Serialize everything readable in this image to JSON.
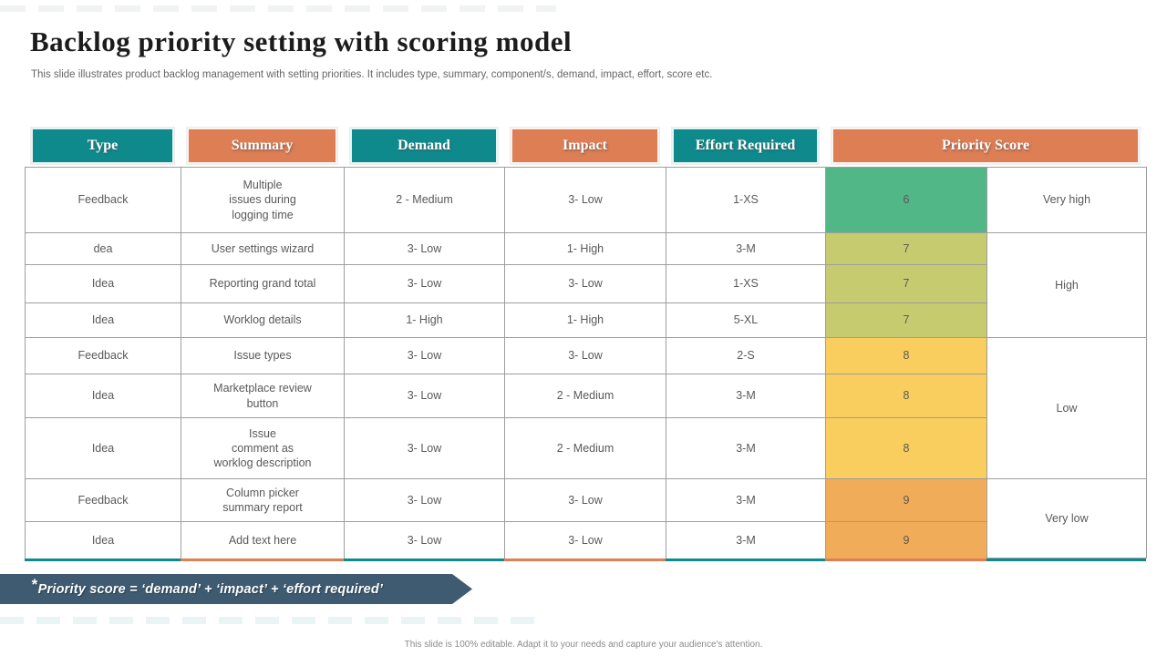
{
  "slide": {
    "title": "Backlog priority setting with scoring model",
    "subtitle": "This slide illustrates product backlog management with setting priorities. It includes type, summary, component/s, demand, impact, effort, score etc.",
    "footer_note": "This slide is 100% editable. Adapt it to your needs and capture your audience's attention.",
    "formula_star": "*",
    "formula_text": "Priority score = ‘demand’ + ‘impact’ + ‘effort required’"
  },
  "table": {
    "headers": [
      {
        "label": "Type",
        "color": "#0E8A8D",
        "span": 1
      },
      {
        "label": "Summary",
        "color": "#DD7E55",
        "span": 1
      },
      {
        "label": "Demand",
        "color": "#0E8A8D",
        "span": 1
      },
      {
        "label": "Impact",
        "color": "#DD7E55",
        "span": 1
      },
      {
        "label": "Effort Required",
        "color": "#0E8A8D",
        "span": 1
      },
      {
        "label": "Priority Score",
        "color": "#DD7E55",
        "span": 2
      }
    ],
    "rows": [
      {
        "type": "Feedback",
        "summary": "Multiple\nissues during\nlogging time",
        "demand": "2 - Medium",
        "impact": "3- Low",
        "effort": "1-XS",
        "score": "6",
        "score_bg": "#52B787",
        "priority_label": "Very high",
        "priority_rowspan": 1
      },
      {
        "type": "dea",
        "summary": "User settings wizard",
        "demand": "3- Low",
        "impact": "1- High",
        "effort": "3-M",
        "score": "7",
        "score_bg": "#C6CB70",
        "priority_label": "High",
        "priority_rowspan": 3
      },
      {
        "type": "Idea",
        "summary": "Reporting grand total",
        "demand": "3- Low",
        "impact": "3- Low",
        "effort": "1-XS",
        "score": "7",
        "score_bg": "#C6CB70"
      },
      {
        "type": "Idea",
        "summary": "Worklog details",
        "demand": "1- High",
        "impact": "1- High",
        "effort": "5-XL",
        "score": "7",
        "score_bg": "#C6CB70"
      },
      {
        "type": "Feedback",
        "summary": "Issue types",
        "demand": "3- Low",
        "impact": "3- Low",
        "effort": "2-S",
        "score": "8",
        "score_bg": "#F9CE5F",
        "priority_label": "Low",
        "priority_rowspan": 3
      },
      {
        "type": "Idea",
        "summary": "Marketplace review\nbutton",
        "demand": "3- Low",
        "impact": "2 - Medium",
        "effort": "3-M",
        "score": "8",
        "score_bg": "#F9CE5F"
      },
      {
        "type": "Idea",
        "summary": "Issue\ncomment as\nworklog description",
        "demand": "3- Low",
        "impact": "2 - Medium",
        "effort": "3-M",
        "score": "8",
        "score_bg": "#F9CE5F"
      },
      {
        "type": "Feedback",
        "summary": "Column picker\nsummary report",
        "demand": "3- Low",
        "impact": "3- Low",
        "effort": "3-M",
        "score": "9",
        "score_bg": "#F0AC59",
        "priority_label": "Very low",
        "priority_rowspan": 2
      },
      {
        "type": "Idea",
        "summary": "Add text here",
        "demand": "3- Low",
        "impact": "3- Low",
        "effort": "3-M",
        "score": "9",
        "score_bg": "#F0AC59"
      }
    ],
    "bottom_stripe_colors": [
      "#0E8A8D",
      "#DD7E55",
      "#0E8A8D",
      "#DD7E55",
      "#0E8A8D",
      "#DD7E55",
      "#0E8A8D"
    ]
  },
  "colors": {
    "teal": "#0E8A8D",
    "orange": "#DD7E55",
    "banner": "#3E5B71"
  }
}
